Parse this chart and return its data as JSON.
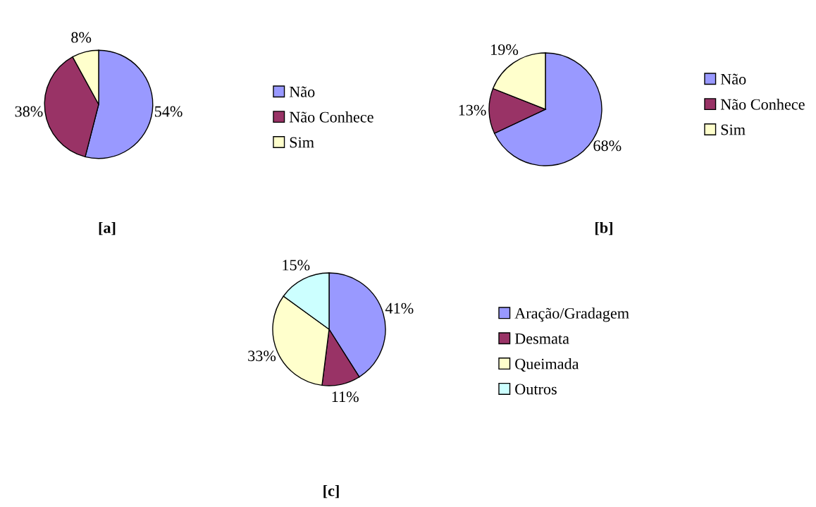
{
  "chart_data": [
    {
      "type": "pie",
      "title": "[a]",
      "categories": [
        "Não",
        "Não Conhece",
        "Sim"
      ],
      "values": [
        54,
        38,
        8
      ],
      "value_labels": [
        "54%",
        "38%",
        "8%"
      ],
      "colors": [
        "#9999ff",
        "#993366",
        "#ffffcc"
      ],
      "legend": "right"
    },
    {
      "type": "pie",
      "title": "[b]",
      "categories": [
        "Não",
        "Não Conhece",
        "Sim"
      ],
      "values": [
        68,
        13,
        19
      ],
      "value_labels": [
        "68%",
        "13%",
        "19%"
      ],
      "colors": [
        "#9999ff",
        "#993366",
        "#ffffcc"
      ],
      "legend": "right"
    },
    {
      "type": "pie",
      "title": "[c]",
      "categories": [
        "Aração/Gradagem",
        "Desmata",
        "Queimada",
        "Outros"
      ],
      "values": [
        41,
        11,
        33,
        15
      ],
      "value_labels": [
        "41%",
        "11%",
        "33%",
        "15%"
      ],
      "colors": [
        "#9999ff",
        "#993366",
        "#ffffcc",
        "#ccffff"
      ],
      "legend": "right"
    }
  ]
}
